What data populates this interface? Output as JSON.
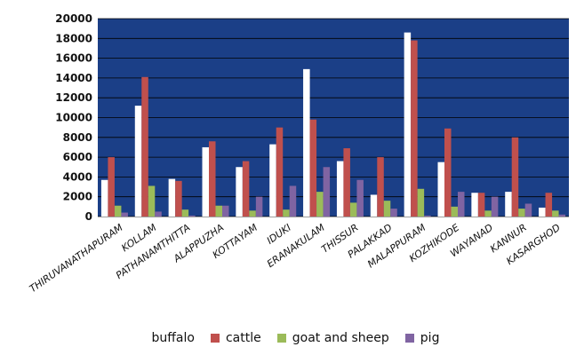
{
  "chart_data": {
    "type": "bar",
    "title": "",
    "xlabel": "",
    "ylabel": "",
    "ylim": [
      0,
      20000
    ],
    "yticks": [
      0,
      2000,
      4000,
      6000,
      8000,
      10000,
      12000,
      14000,
      16000,
      18000,
      20000
    ],
    "grid": true,
    "legend_position": "bottom",
    "plot_background": "#1b3f87",
    "categories": [
      "THIRUVANATHAPURAM",
      "KOLLAM",
      "PATHANAMTHITTA",
      "ALAPPUZHA",
      "KOTTAYAM",
      "IDUKI",
      "ERANAKULAM",
      "THISSUR",
      "PALAKKAD",
      "MALAPPURAM",
      "KOZHIKODE",
      "WAYANAD",
      "KANNUR",
      "KASARGHOD"
    ],
    "series": [
      {
        "name": "buffalo",
        "color": "#ffffff",
        "values": [
          3700,
          11200,
          3800,
          7000,
          5000,
          7300,
          14900,
          5600,
          2200,
          18600,
          5500,
          2400,
          2500,
          900
        ]
      },
      {
        "name": "cattle",
        "color": "#c0504d",
        "values": [
          6000,
          14100,
          3600,
          7600,
          5600,
          9000,
          9800,
          6900,
          6000,
          17800,
          8900,
          2400,
          8000,
          2400
        ]
      },
      {
        "name": "goat and sheep",
        "color": "#9bbb59",
        "values": [
          1100,
          3100,
          700,
          1100,
          600,
          700,
          2500,
          1400,
          1600,
          2800,
          1000,
          600,
          800,
          600
        ]
      },
      {
        "name": "pig",
        "color": "#8064a2",
        "values": [
          400,
          500,
          100,
          1100,
          2000,
          3100,
          5000,
          3700,
          800,
          100,
          2500,
          2000,
          1300,
          200
        ]
      }
    ]
  }
}
